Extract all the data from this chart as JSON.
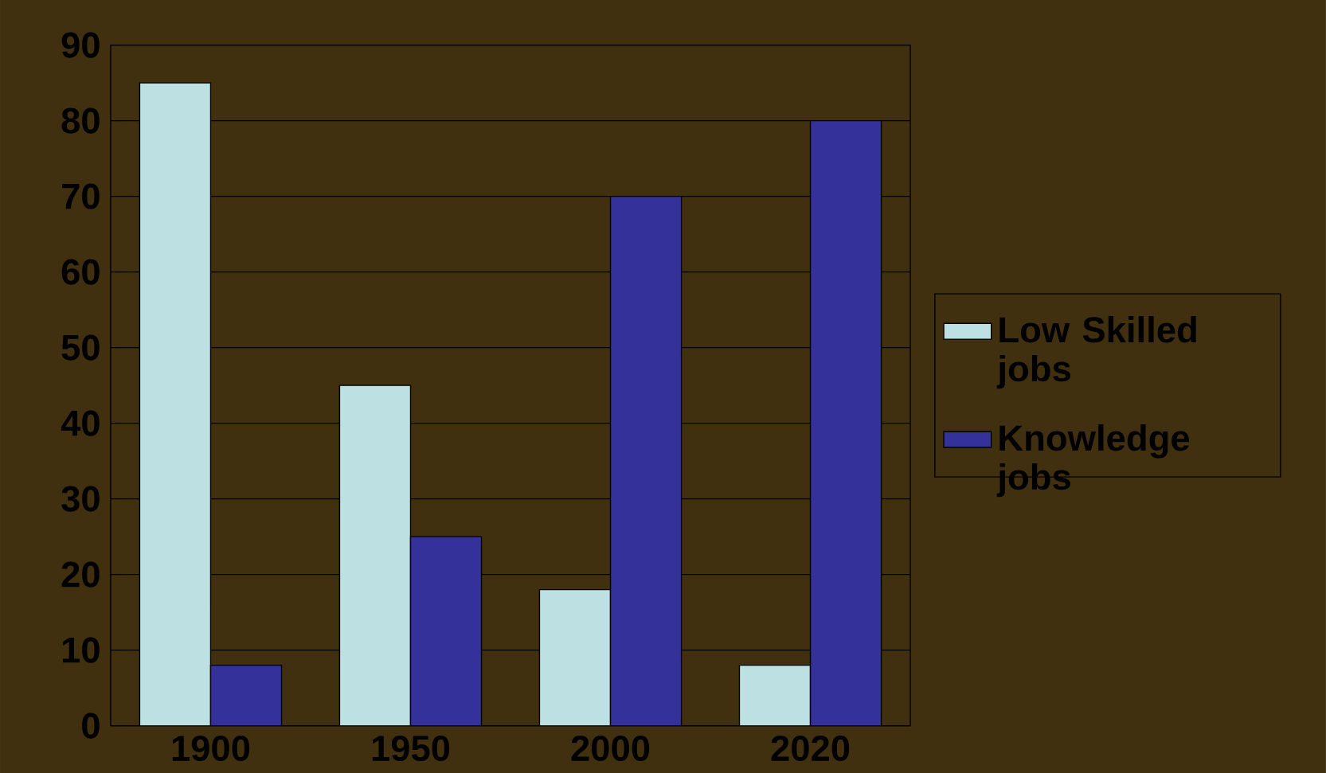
{
  "chart_data": {
    "type": "bar",
    "categories": [
      "1900",
      "1950",
      "2000",
      "2020"
    ],
    "series": [
      {
        "name": "Low Skilled jobs",
        "color": "#bde0e3",
        "values": [
          85,
          45,
          18,
          8
        ]
      },
      {
        "name": "Knowledge jobs",
        "color": "#34329a",
        "values": [
          8,
          25,
          70,
          80
        ]
      }
    ],
    "ylim": [
      0,
      90
    ],
    "yticks": [
      0,
      10,
      20,
      30,
      40,
      50,
      60,
      70,
      80,
      90
    ],
    "grid": "y",
    "legend": "right"
  }
}
